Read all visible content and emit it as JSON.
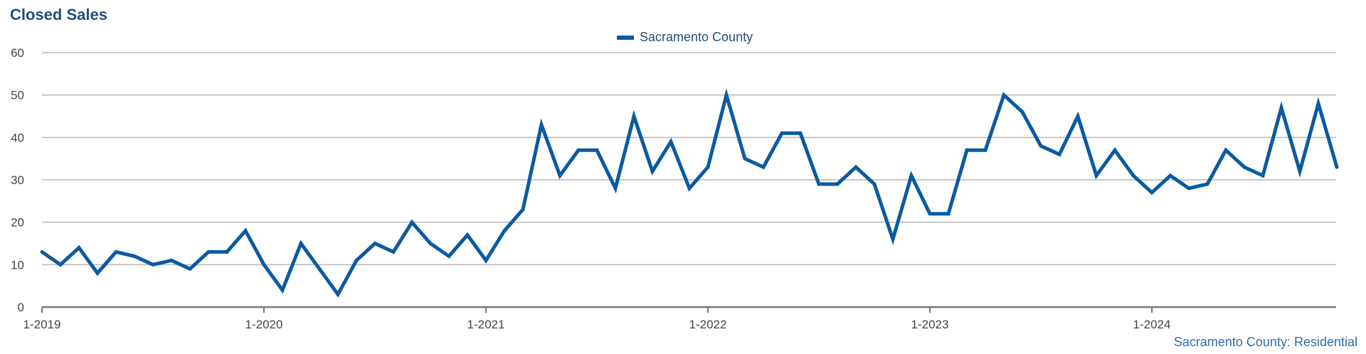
{
  "chart_data": {
    "type": "line",
    "title": "Closed Sales",
    "footer": "Sacramento County: Residential",
    "series": [
      {
        "name": "Sacramento County",
        "color": "#0b5aa2",
        "x": [
          "1-2019",
          "2-2019",
          "3-2019",
          "4-2019",
          "5-2019",
          "6-2019",
          "7-2019",
          "8-2019",
          "9-2019",
          "10-2019",
          "11-2019",
          "12-2019",
          "1-2020",
          "2-2020",
          "3-2020",
          "4-2020",
          "5-2020",
          "6-2020",
          "7-2020",
          "8-2020",
          "9-2020",
          "10-2020",
          "11-2020",
          "12-2020",
          "1-2021",
          "2-2021",
          "3-2021",
          "4-2021",
          "5-2021",
          "6-2021",
          "7-2021",
          "8-2021",
          "9-2021",
          "10-2021",
          "11-2021",
          "12-2021",
          "1-2022",
          "2-2022",
          "3-2022",
          "4-2022",
          "5-2022",
          "6-2022",
          "7-2022",
          "8-2022",
          "9-2022",
          "10-2022",
          "11-2022",
          "12-2022",
          "1-2023",
          "2-2023",
          "3-2023",
          "4-2023",
          "5-2023",
          "6-2023",
          "7-2023",
          "8-2023",
          "9-2023",
          "10-2023",
          "11-2023",
          "12-2023",
          "1-2024",
          "2-2024",
          "3-2024",
          "4-2024",
          "5-2024",
          "6-2024",
          "7-2024",
          "8-2024",
          "9-2024",
          "10-2024",
          "11-2024"
        ],
        "values": [
          13,
          10,
          14,
          8,
          13,
          12,
          10,
          11,
          9,
          13,
          13,
          18,
          10,
          4,
          15,
          9,
          3,
          11,
          15,
          13,
          20,
          15,
          12,
          17,
          11,
          18,
          23,
          43,
          31,
          37,
          37,
          28,
          45,
          32,
          39,
          28,
          33,
          50,
          35,
          33,
          41,
          41,
          29,
          29,
          33,
          29,
          16,
          31,
          22,
          22,
          37,
          37,
          50,
          46,
          38,
          36,
          45,
          31,
          37,
          31,
          27,
          31,
          28,
          29,
          37,
          33,
          31,
          47,
          32,
          48,
          33
        ]
      }
    ],
    "xticks": [
      "1-2019",
      "1-2020",
      "1-2021",
      "1-2022",
      "1-2023",
      "1-2024"
    ],
    "yticks": [
      0,
      10,
      20,
      30,
      40,
      50,
      60
    ],
    "ylim": [
      0,
      60
    ],
    "xlabel": "",
    "ylabel": "",
    "grid": true,
    "legend": "top-center"
  }
}
